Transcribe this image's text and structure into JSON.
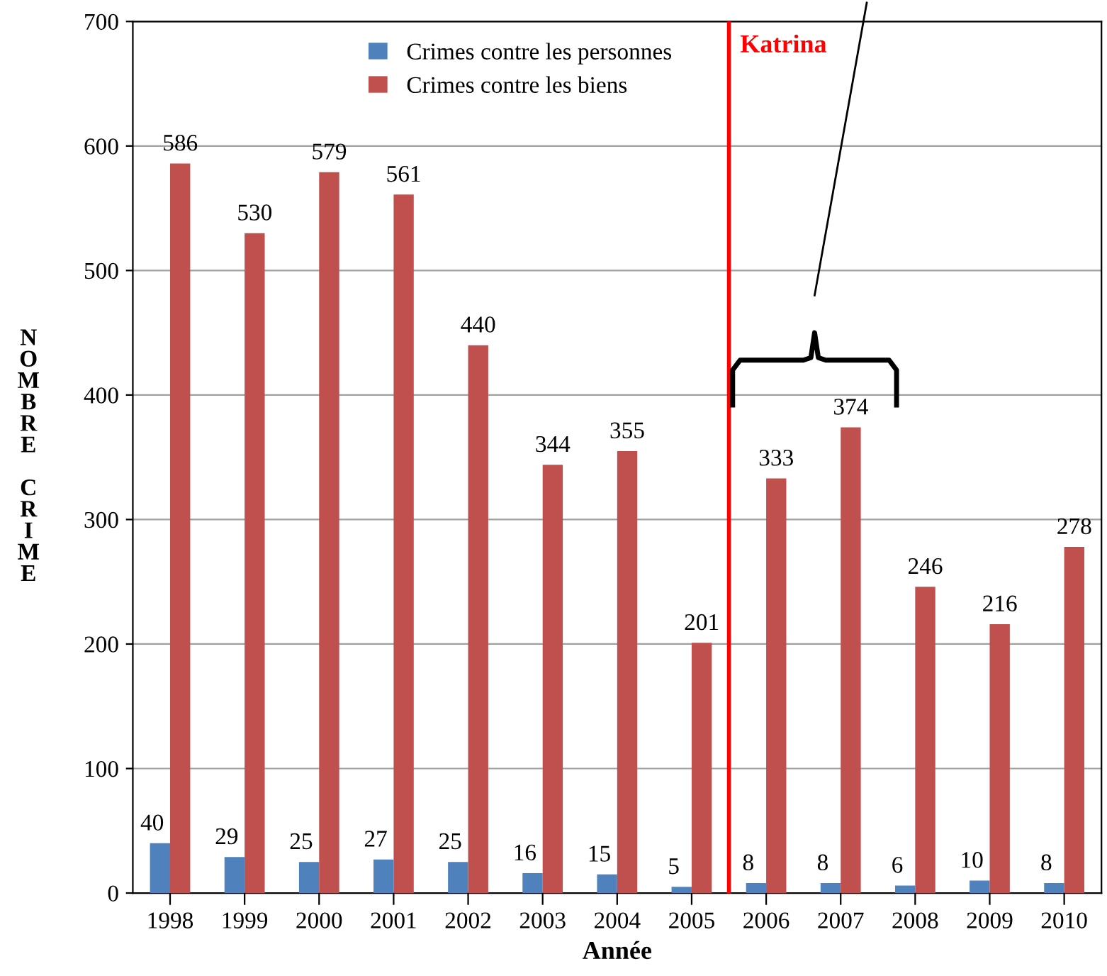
{
  "chart_data": {
    "type": "bar",
    "xlabel": "Année",
    "ylabel": "NOMBRE CRIME",
    "categories": [
      "1998",
      "1999",
      "2000",
      "2001",
      "2002",
      "2003",
      "2004",
      "2005",
      "2006",
      "2007",
      "2008",
      "2009",
      "2010"
    ],
    "series": [
      {
        "name": "Crimes contre les personnes",
        "color": "#4f81bd",
        "values": [
          40,
          29,
          25,
          27,
          25,
          16,
          15,
          5,
          8,
          8,
          6,
          10,
          8
        ]
      },
      {
        "name": "Crimes contre les biens",
        "color": "#c0504d",
        "values": [
          586,
          530,
          579,
          561,
          440,
          344,
          355,
          201,
          333,
          374,
          246,
          216,
          278
        ]
      }
    ],
    "ylim": [
      0,
      700
    ],
    "yticks": [
      0,
      100,
      200,
      300,
      400,
      500,
      600,
      700
    ],
    "grid": "y",
    "legend": "top",
    "data_labels": true,
    "ref_lines": [
      {
        "axis": "x",
        "value": "2006",
        "label": "Katrina",
        "color": "#ff0000"
      }
    ]
  }
}
